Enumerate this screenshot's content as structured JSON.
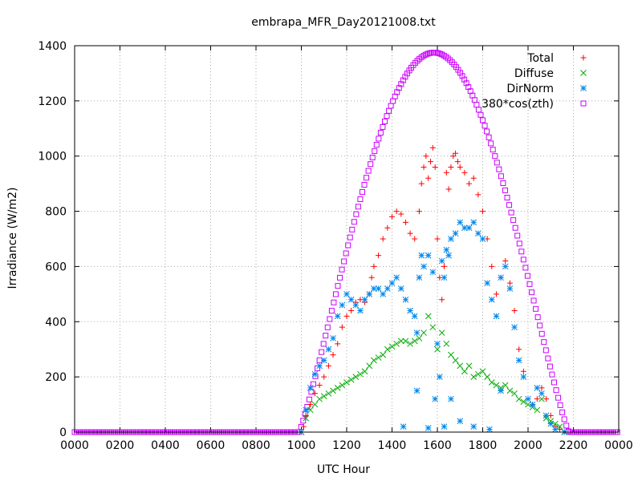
{
  "chart_data": {
    "type": "scatter",
    "title": "embrapa_MFR_Day20121008.txt",
    "xlabel": "UTC Hour",
    "ylabel": "Irradiance (W/m2)",
    "xlim": [
      0,
      24
    ],
    "ylim": [
      0,
      1400
    ],
    "x_ticks": [
      0,
      2,
      4,
      6,
      8,
      10,
      12,
      14,
      16,
      18,
      20,
      22,
      24
    ],
    "x_tick_labels": [
      "0000",
      "0200",
      "0400",
      "0600",
      "0800",
      "1000",
      "1200",
      "1400",
      "1600",
      "1800",
      "2000",
      "2200",
      "0000"
    ],
    "y_ticks": [
      0,
      200,
      400,
      600,
      800,
      1000,
      1200,
      1400
    ],
    "y_tick_labels": [
      "0",
      "200",
      "400",
      "600",
      "800",
      "1000",
      "1200",
      "1400"
    ],
    "grid": true,
    "legend_position": "top-right",
    "series": [
      {
        "name": "Total",
        "marker": "plus",
        "color": "#ff0000",
        "points": [
          [
            10.0,
            0
          ],
          [
            10.1,
            20
          ],
          [
            10.2,
            60
          ],
          [
            10.4,
            100
          ],
          [
            10.6,
            140
          ],
          [
            10.8,
            170
          ],
          [
            11.0,
            200
          ],
          [
            11.2,
            240
          ],
          [
            11.4,
            280
          ],
          [
            11.6,
            320
          ],
          [
            11.8,
            380
          ],
          [
            12.0,
            420
          ],
          [
            12.2,
            440
          ],
          [
            12.4,
            470
          ],
          [
            12.6,
            480
          ],
          [
            12.8,
            470
          ],
          [
            13.0,
            500
          ],
          [
            13.1,
            560
          ],
          [
            13.2,
            600
          ],
          [
            13.4,
            640
          ],
          [
            13.6,
            700
          ],
          [
            13.8,
            740
          ],
          [
            14.0,
            780
          ],
          [
            14.2,
            800
          ],
          [
            14.4,
            790
          ],
          [
            14.6,
            760
          ],
          [
            14.8,
            720
          ],
          [
            15.0,
            700
          ],
          [
            15.2,
            800
          ],
          [
            15.3,
            900
          ],
          [
            15.4,
            960
          ],
          [
            15.5,
            1000
          ],
          [
            15.6,
            920
          ],
          [
            15.7,
            980
          ],
          [
            15.8,
            1030
          ],
          [
            15.9,
            960
          ],
          [
            16.0,
            700
          ],
          [
            16.1,
            560
          ],
          [
            16.2,
            480
          ],
          [
            16.3,
            600
          ],
          [
            16.4,
            940
          ],
          [
            16.5,
            880
          ],
          [
            16.6,
            960
          ],
          [
            16.7,
            1000
          ],
          [
            16.8,
            1010
          ],
          [
            16.9,
            980
          ],
          [
            17.0,
            960
          ],
          [
            17.2,
            940
          ],
          [
            17.4,
            900
          ],
          [
            17.6,
            920
          ],
          [
            17.8,
            860
          ],
          [
            18.0,
            800
          ],
          [
            18.2,
            700
          ],
          [
            18.4,
            600
          ],
          [
            18.6,
            500
          ],
          [
            18.8,
            560
          ],
          [
            19.0,
            620
          ],
          [
            19.2,
            540
          ],
          [
            19.4,
            440
          ],
          [
            19.6,
            300
          ],
          [
            19.8,
            220
          ],
          [
            20.0,
            120
          ],
          [
            20.2,
            100
          ],
          [
            20.4,
            120
          ],
          [
            20.6,
            160
          ],
          [
            20.8,
            120
          ],
          [
            21.0,
            60
          ],
          [
            21.2,
            20
          ],
          [
            21.4,
            10
          ],
          [
            21.6,
            0
          ]
        ]
      },
      {
        "name": "Diffuse",
        "marker": "cross",
        "color": "#00aa00",
        "points": [
          [
            10.0,
            0
          ],
          [
            10.2,
            50
          ],
          [
            10.4,
            80
          ],
          [
            10.6,
            100
          ],
          [
            10.8,
            120
          ],
          [
            11.0,
            130
          ],
          [
            11.2,
            140
          ],
          [
            11.4,
            150
          ],
          [
            11.6,
            160
          ],
          [
            11.8,
            170
          ],
          [
            12.0,
            180
          ],
          [
            12.2,
            190
          ],
          [
            12.4,
            200
          ],
          [
            12.6,
            210
          ],
          [
            12.8,
            220
          ],
          [
            13.0,
            240
          ],
          [
            13.2,
            260
          ],
          [
            13.4,
            270
          ],
          [
            13.6,
            280
          ],
          [
            13.8,
            300
          ],
          [
            14.0,
            310
          ],
          [
            14.2,
            320
          ],
          [
            14.4,
            330
          ],
          [
            14.6,
            330
          ],
          [
            14.8,
            320
          ],
          [
            15.0,
            330
          ],
          [
            15.2,
            340
          ],
          [
            15.4,
            360
          ],
          [
            15.6,
            420
          ],
          [
            15.8,
            380
          ],
          [
            16.0,
            300
          ],
          [
            16.2,
            360
          ],
          [
            16.4,
            320
          ],
          [
            16.6,
            280
          ],
          [
            16.8,
            260
          ],
          [
            17.0,
            240
          ],
          [
            17.2,
            220
          ],
          [
            17.4,
            240
          ],
          [
            17.6,
            200
          ],
          [
            17.8,
            210
          ],
          [
            18.0,
            220
          ],
          [
            18.2,
            200
          ],
          [
            18.4,
            180
          ],
          [
            18.6,
            170
          ],
          [
            18.8,
            160
          ],
          [
            19.0,
            170
          ],
          [
            19.2,
            150
          ],
          [
            19.4,
            140
          ],
          [
            19.6,
            120
          ],
          [
            19.8,
            110
          ],
          [
            20.0,
            100
          ],
          [
            20.2,
            90
          ],
          [
            20.4,
            80
          ],
          [
            20.6,
            120
          ],
          [
            20.8,
            50
          ],
          [
            21.0,
            40
          ],
          [
            21.2,
            30
          ],
          [
            21.4,
            20
          ],
          [
            21.6,
            0
          ]
        ]
      },
      {
        "name": "DirNorm",
        "marker": "star",
        "color": "#0088ee",
        "points": [
          [
            10.0,
            0
          ],
          [
            10.2,
            80
          ],
          [
            10.4,
            160
          ],
          [
            10.6,
            210
          ],
          [
            10.8,
            240
          ],
          [
            11.0,
            260
          ],
          [
            11.2,
            300
          ],
          [
            11.4,
            340
          ],
          [
            11.6,
            420
          ],
          [
            11.8,
            460
          ],
          [
            12.0,
            500
          ],
          [
            12.2,
            480
          ],
          [
            12.4,
            460
          ],
          [
            12.6,
            440
          ],
          [
            12.8,
            480
          ],
          [
            13.0,
            500
          ],
          [
            13.2,
            520
          ],
          [
            13.4,
            520
          ],
          [
            13.6,
            500
          ],
          [
            13.8,
            520
          ],
          [
            14.0,
            540
          ],
          [
            14.2,
            560
          ],
          [
            14.4,
            520
          ],
          [
            14.6,
            480
          ],
          [
            14.8,
            440
          ],
          [
            15.0,
            420
          ],
          [
            15.1,
            360
          ],
          [
            15.2,
            560
          ],
          [
            15.3,
            640
          ],
          [
            15.4,
            600
          ],
          [
            15.6,
            640
          ],
          [
            15.8,
            580
          ],
          [
            15.9,
            120
          ],
          [
            16.0,
            320
          ],
          [
            16.1,
            200
          ],
          [
            16.2,
            620
          ],
          [
            16.3,
            560
          ],
          [
            16.4,
            660
          ],
          [
            16.5,
            640
          ],
          [
            16.6,
            700
          ],
          [
            16.8,
            720
          ],
          [
            17.0,
            760
          ],
          [
            17.2,
            740
          ],
          [
            17.4,
            740
          ],
          [
            17.6,
            760
          ],
          [
            17.8,
            720
          ],
          [
            18.0,
            700
          ],
          [
            18.2,
            540
          ],
          [
            18.4,
            480
          ],
          [
            18.6,
            420
          ],
          [
            18.8,
            560
          ],
          [
            19.0,
            600
          ],
          [
            19.2,
            520
          ],
          [
            19.4,
            380
          ],
          [
            19.6,
            260
          ],
          [
            19.8,
            200
          ],
          [
            20.0,
            120
          ],
          [
            20.2,
            100
          ],
          [
            20.4,
            160
          ],
          [
            20.6,
            140
          ],
          [
            20.8,
            60
          ],
          [
            21.0,
            30
          ],
          [
            21.2,
            10
          ],
          [
            21.6,
            0
          ],
          [
            14.5,
            20
          ],
          [
            15.6,
            15
          ],
          [
            16.3,
            20
          ],
          [
            17.0,
            40
          ],
          [
            17.6,
            20
          ],
          [
            18.3,
            10
          ],
          [
            18.8,
            150
          ],
          [
            15.1,
            150
          ],
          [
            16.6,
            120
          ]
        ]
      },
      {
        "name": "380*cos(zth)",
        "marker": "square",
        "color": "#cc00ff",
        "curve": {
          "peak_x": 15.85,
          "peak_y": 1375,
          "x_start": 9.9,
          "x_end": 21.8
        }
      }
    ]
  }
}
